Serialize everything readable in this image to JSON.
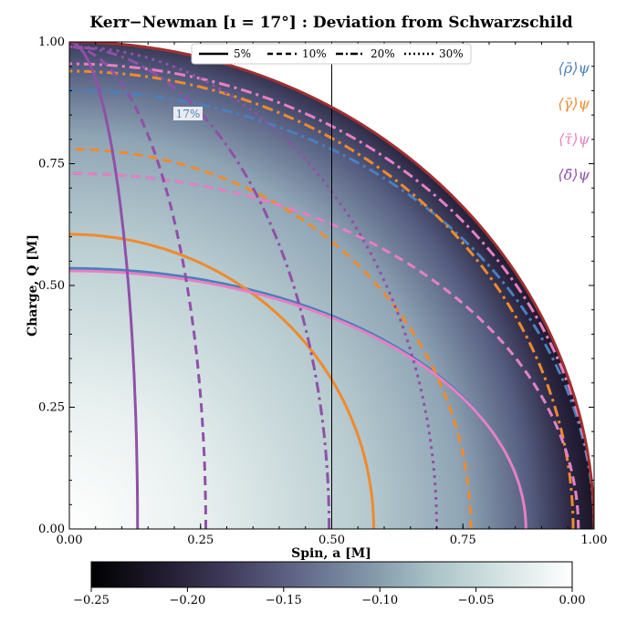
{
  "chart_data": {
    "type": "contour",
    "title": "Kerr−Newman [ı = 17°] : Deviation from Schwarzschild",
    "xlabel": "Spin, a [M]",
    "ylabel": "Charge, Q [M]",
    "xlim": [
      0,
      1
    ],
    "ylim": [
      0,
      1
    ],
    "xticks": [
      0.0,
      0.25,
      0.5,
      0.75,
      1.0
    ],
    "xtick_labels": [
      "0.00",
      "0.25",
      "0.50",
      "0.75",
      "1.00"
    ],
    "yticks": [
      0.0,
      0.25,
      0.5,
      0.75,
      1.0
    ],
    "ytick_labels": [
      "0.00",
      "0.25",
      "0.50",
      "0.75",
      "1.00"
    ],
    "vertical_line_x": 0.5,
    "contour_label": "17%",
    "colorbar": {
      "min": -0.25,
      "max": 0.0,
      "ticks": [
        -0.25,
        -0.2,
        -0.15,
        -0.1,
        -0.05,
        0.0
      ],
      "tick_labels": [
        "−0.25",
        "−0.20",
        "−0.15",
        "−0.10",
        "−0.05",
        "0.00"
      ],
      "colors": [
        "#000000",
        "#1f1a2c",
        "#3f3a5a",
        "#5f6486",
        "#7f94a6",
        "#a9c3c7",
        "#d3e3e2",
        "#ffffff"
      ]
    },
    "line_styles": [
      {
        "label": "5%",
        "dash": "solid"
      },
      {
        "label": "10%",
        "dash": "dashed"
      },
      {
        "label": "20%",
        "dash": "dashdot"
      },
      {
        "label": "30%",
        "dash": "dotted"
      }
    ],
    "quantities": [
      {
        "name": "rho",
        "label": "⟨ρ̄⟩ψ",
        "color": "#4a7fbd"
      },
      {
        "name": "gamma",
        "label": "⟨γ̄⟩ψ",
        "color": "#f08a2c"
      },
      {
        "name": "tau",
        "label": "⟨τ̄⟩ψ",
        "color": "#e87fc2"
      },
      {
        "name": "delta",
        "label": "⟨δ̄⟩ψ",
        "color": "#9050a8"
      }
    ],
    "contours": [
      {
        "quantity": "rho",
        "level": "5%",
        "shape": "ellipse",
        "a_at_Q0": 0.87,
        "Q_at_a0": 0.535
      },
      {
        "quantity": "rho",
        "level": "10%",
        "shape": "ellipse",
        "a_at_Q0": 0.97,
        "Q_at_a0": 0.73
      },
      {
        "quantity": "rho",
        "level": "20%",
        "shape": "ellipse",
        "a_at_Q0": 1.0,
        "Q_at_a0": 0.9
      },
      {
        "quantity": "gamma",
        "level": "5%",
        "shape": "ellipse",
        "a_at_Q0": 0.58,
        "Q_at_a0": 0.605
      },
      {
        "quantity": "gamma",
        "level": "10%",
        "shape": "ellipse",
        "a_at_Q0": 0.765,
        "Q_at_a0": 0.78
      },
      {
        "quantity": "gamma",
        "level": "20%",
        "shape": "ellipse",
        "a_at_Q0": 0.96,
        "Q_at_a0": 0.94
      },
      {
        "quantity": "tau",
        "level": "5%",
        "shape": "ellipse",
        "a_at_Q0": 0.87,
        "Q_at_a0": 0.53
      },
      {
        "quantity": "tau",
        "level": "10%",
        "shape": "ellipse",
        "a_at_Q0": 0.97,
        "Q_at_a0": 0.73
      },
      {
        "quantity": "tau",
        "level": "20%",
        "shape": "ellipse",
        "a_at_Q0": 1.0,
        "Q_at_a0": 0.955
      },
      {
        "quantity": "delta",
        "level": "5%",
        "shape": "ellipse",
        "a_at_Q0": 0.13,
        "Q_at_a0": 1.0
      },
      {
        "quantity": "delta",
        "level": "10%",
        "shape": "ellipse",
        "a_at_Q0": 0.26,
        "Q_at_a0": 0.99
      },
      {
        "quantity": "delta",
        "level": "20%",
        "shape": "ellipse",
        "a_at_Q0": 0.495,
        "Q_at_a0": 0.99
      },
      {
        "quantity": "delta",
        "level": "30%",
        "shape": "ellipse",
        "a_at_Q0": 0.7,
        "Q_at_a0": 0.99
      }
    ],
    "boundary": {
      "shape": "circle",
      "radius": 1.0,
      "color": "#a03030"
    }
  }
}
